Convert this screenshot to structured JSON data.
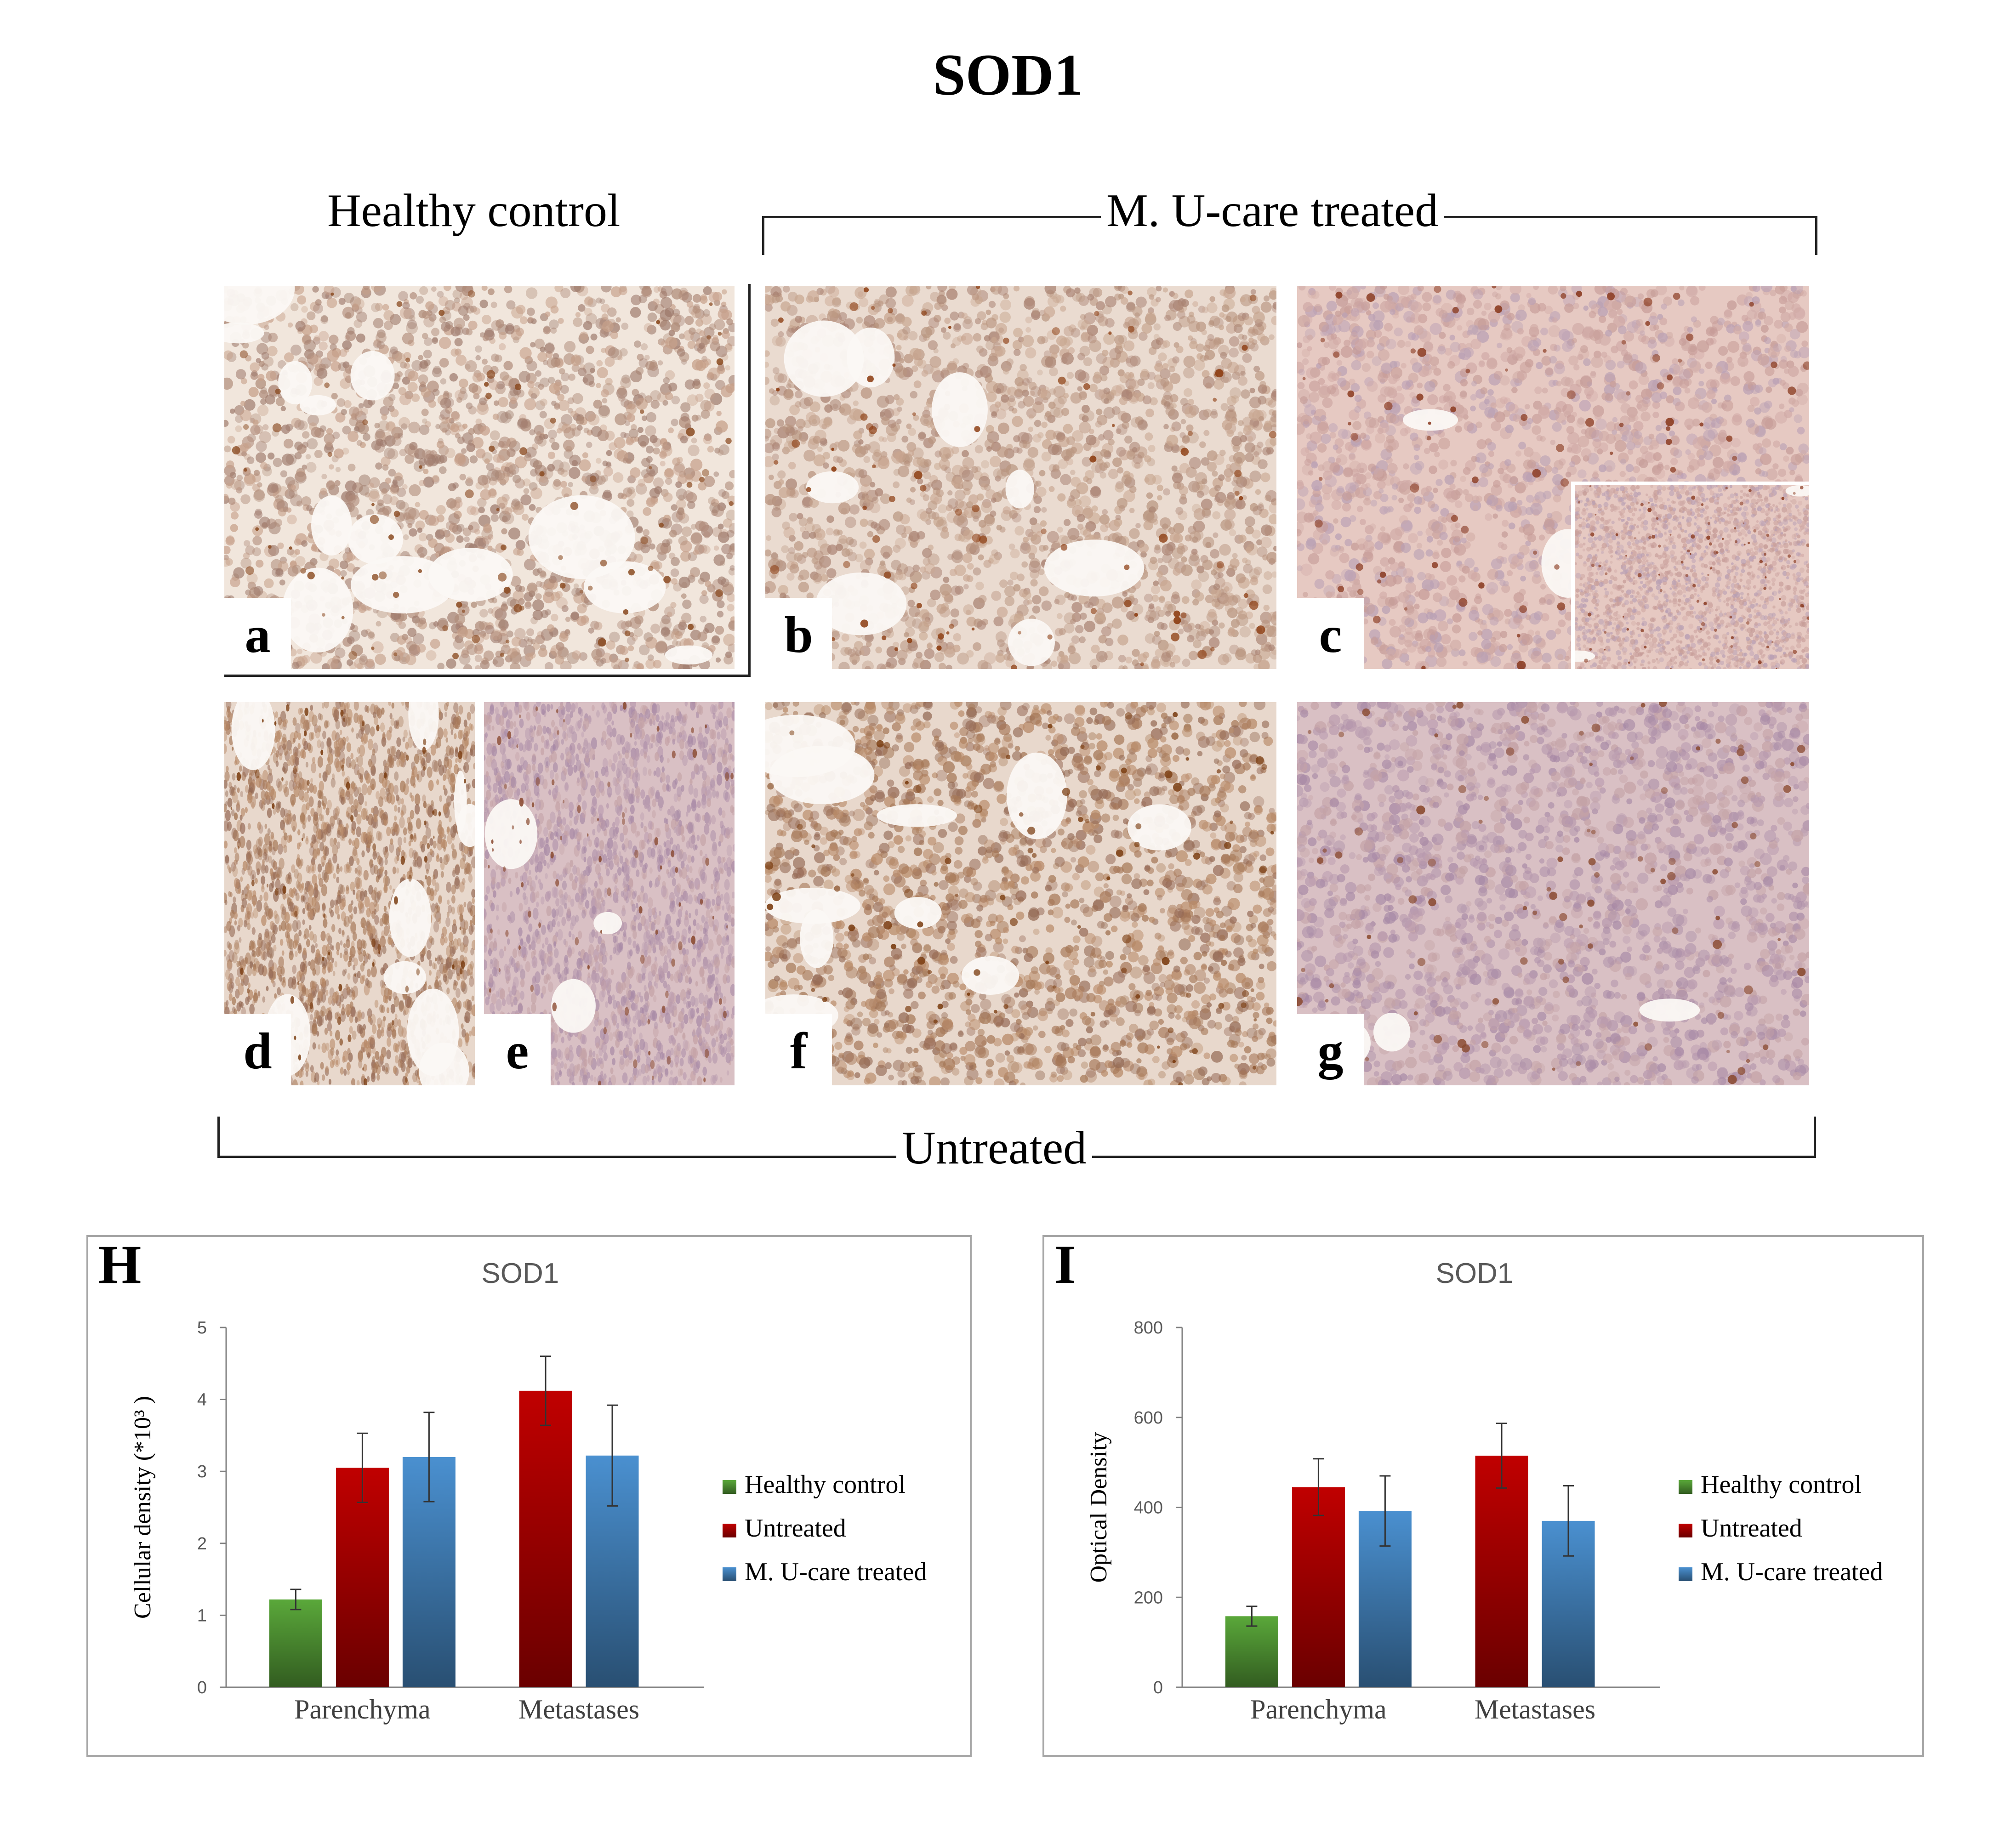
{
  "figure": {
    "title": "SOD1",
    "labels": {
      "healthy": "Healthy control",
      "treated": "M. U-care treated",
      "untreated": "Untreated"
    },
    "panels": [
      {
        "id": "a",
        "letter": "a",
        "tone": "brown-light"
      },
      {
        "id": "b",
        "letter": "b",
        "tone": "brown-dense"
      },
      {
        "id": "c",
        "letter": "c",
        "tone": "pink-metastasis"
      },
      {
        "id": "d",
        "letter": "d",
        "tone": "brown-dark"
      },
      {
        "id": "e",
        "letter": "e",
        "tone": "purple-metastasis"
      },
      {
        "id": "f",
        "letter": "f",
        "tone": "brown-dark"
      },
      {
        "id": "g",
        "letter": "g",
        "tone": "purple-metastasis"
      }
    ]
  },
  "chart_data": [
    {
      "panel_letter": "H",
      "type": "bar",
      "title": "SOD1",
      "ylabel": "Cellular density (*10³ )",
      "xlabel": "",
      "ylim": [
        0,
        5
      ],
      "yticks": [
        0,
        1,
        2,
        3,
        4,
        5
      ],
      "categories": [
        "Parenchyma",
        "Metastases"
      ],
      "series": [
        {
          "name": "Healthy control",
          "color": "#5aa83a",
          "values": [
            1.22,
            null
          ],
          "errors": [
            0.14,
            null
          ]
        },
        {
          "name": "Untreated",
          "color": "#c00000",
          "values": [
            3.05,
            4.12
          ],
          "errors": [
            0.48,
            0.48
          ]
        },
        {
          "name": "M. U-care treated",
          "color": "#4a90d0",
          "values": [
            3.2,
            3.22
          ],
          "errors": [
            0.62,
            0.7
          ]
        }
      ],
      "legend": "right",
      "grid": false
    },
    {
      "panel_letter": "I",
      "type": "bar",
      "title": "SOD1",
      "ylabel": "Optical Density",
      "xlabel": "",
      "ylim": [
        0,
        800
      ],
      "yticks": [
        0,
        200,
        400,
        600,
        800
      ],
      "categories": [
        "Parenchyma",
        "Metastases"
      ],
      "series": [
        {
          "name": "Healthy control",
          "color": "#5aa83a",
          "values": [
            158,
            null
          ],
          "errors": [
            22,
            null
          ]
        },
        {
          "name": "Untreated",
          "color": "#c00000",
          "values": [
            445,
            515
          ],
          "errors": [
            63,
            72
          ]
        },
        {
          "name": "M. U-care treated",
          "color": "#4a90d0",
          "values": [
            392,
            370
          ],
          "errors": [
            78,
            78
          ]
        }
      ],
      "legend": "right",
      "grid": false
    }
  ]
}
